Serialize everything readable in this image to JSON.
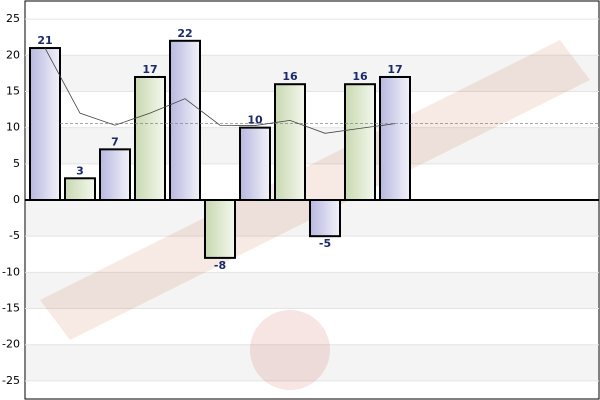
{
  "chart_data": {
    "type": "bar",
    "values": [
      21,
      3,
      7,
      17,
      22,
      -8,
      10,
      16,
      -5,
      16,
      17
    ],
    "colors": [
      "#d6d6ee",
      "#dfe9cf"
    ],
    "line_values": [
      21,
      12,
      10.33,
      12,
      14,
      10.33,
      10.29,
      11,
      9.22,
      9.9,
      10.55
    ],
    "average_line": 10.55,
    "ylim": [
      -27.5,
      27.5
    ],
    "yticks": [
      -25,
      -20,
      -15,
      -10,
      -5,
      0,
      5,
      10,
      15,
      20,
      25
    ],
    "grid": true
  }
}
